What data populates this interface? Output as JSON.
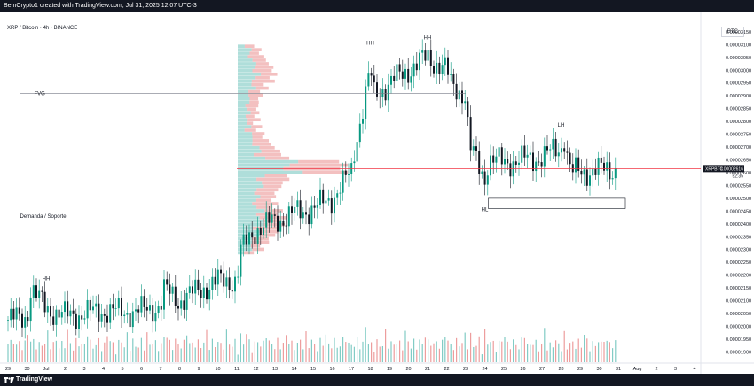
{
  "header": {
    "attribution": "BeInCrypto1 created with TradingView.com, Jul 31, 2025 12:07 UTC-3"
  },
  "footer": {
    "brand": "TradingView",
    "logo_icon": "tradingview-logo-icon"
  },
  "chart_data": {
    "type": "candlestick",
    "title": "XRP / Bitcoin · 4h · BINANCE",
    "currency": "BTC",
    "ylim": [
      1.86e-05,
      3.16e-05
    ],
    "y_ticks": [
      "0.00003150",
      "0.00003100",
      "0.00003050",
      "0.00003000",
      "0.00002950",
      "0.00002900",
      "0.00002850",
      "0.00002800",
      "0.00002750",
      "0.00002700",
      "0.00002650",
      "0.00002600",
      "0.00002550",
      "0.00002500",
      "0.00002450",
      "0.00002400",
      "0.00002350",
      "0.00002300",
      "0.00002250",
      "0.00002200",
      "0.00002150",
      "0.00002100",
      "0.00002050",
      "0.00002000",
      "0.00001950",
      "0.00001900"
    ],
    "x_ticks": [
      "29",
      "30",
      "Jul",
      "2",
      "3",
      "4",
      "5",
      "6",
      "7",
      "8",
      "9",
      "10",
      "11",
      "12",
      "13",
      "14",
      "15",
      "16",
      "17",
      "18",
      "19",
      "20",
      "21",
      "22",
      "23",
      "24",
      "25",
      "26",
      "27",
      "28",
      "29",
      "30",
      "31",
      "Aug",
      "2",
      "3",
      "4"
    ],
    "price_path": [
      [
        "29",
        2.025e-05
      ],
      [
        "30",
        2.035e-05
      ],
      [
        "30",
        2.145e-05
      ],
      [
        "Jul",
        2.07e-05
      ],
      [
        "2",
        2.04e-05
      ],
      [
        "3",
        2.05e-05
      ],
      [
        "4",
        2.06e-05
      ],
      [
        "5",
        2.055e-05
      ],
      [
        "6",
        2.06e-05
      ],
      [
        "7",
        2.08e-05
      ],
      [
        "7",
        2.14e-05
      ],
      [
        "8",
        2.1e-05
      ],
      [
        "9",
        2.14e-05
      ],
      [
        "10",
        2.175e-05
      ],
      [
        "11",
        2.18e-05
      ],
      [
        "11",
        2.29e-05
      ],
      [
        "12",
        2.38e-05
      ],
      [
        "13",
        2.41e-05
      ],
      [
        "14",
        2.44e-05
      ],
      [
        "15",
        2.46e-05
      ],
      [
        "16",
        2.5e-05
      ],
      [
        "17",
        2.6e-05
      ],
      [
        "17",
        2.7e-05
      ],
      [
        "18",
        3e-05
      ],
      [
        "18",
        2.9e-05
      ],
      [
        "19",
        2.95e-05
      ],
      [
        "20",
        3e-05
      ],
      [
        "21",
        3.05e-05
      ],
      [
        "22",
        3e-05
      ],
      [
        "22",
        2.95e-05
      ],
      [
        "23",
        2.9e-05
      ],
      [
        "23",
        2.7e-05
      ],
      [
        "24",
        2.58e-05
      ],
      [
        "24",
        2.65e-05
      ],
      [
        "25",
        2.64e-05
      ],
      [
        "26",
        2.65e-05
      ],
      [
        "27",
        2.66e-05
      ],
      [
        "28",
        2.7e-05
      ],
      [
        "28",
        2.74e-05
      ],
      [
        "29",
        2.64e-05
      ],
      [
        "30",
        2.6e-05
      ],
      [
        "31",
        2.616e-05
      ]
    ],
    "volume_profile_range": [
      2.28e-05,
      3.1e-05
    ],
    "last_price": {
      "symbol": "XRPBTC",
      "value": "0.00002616",
      "countdown": "52:35",
      "level": 2.616e-05
    },
    "annotations": [
      {
        "text": "HH",
        "x": "Jul",
        "y": 2.18e-05
      },
      {
        "text": "HH",
        "x": "18",
        "y": 3.1e-05
      },
      {
        "text": "HH",
        "x": "21",
        "y": 3.12e-05
      },
      {
        "text": "LH",
        "x": "28",
        "y": 2.78e-05
      },
      {
        "text": "HL",
        "x": "24",
        "y": 2.45e-05
      },
      {
        "text": "FVG",
        "x": "29",
        "y": 2.91e-05
      },
      {
        "text": "Demanda / Soporte",
        "x": "29",
        "y": 2.43e-05
      }
    ],
    "colors": {
      "up": "#089981",
      "down": "#131722",
      "resistance": "#f23645",
      "vp_red": "#e57373",
      "vp_green": "#4db6ac"
    }
  }
}
